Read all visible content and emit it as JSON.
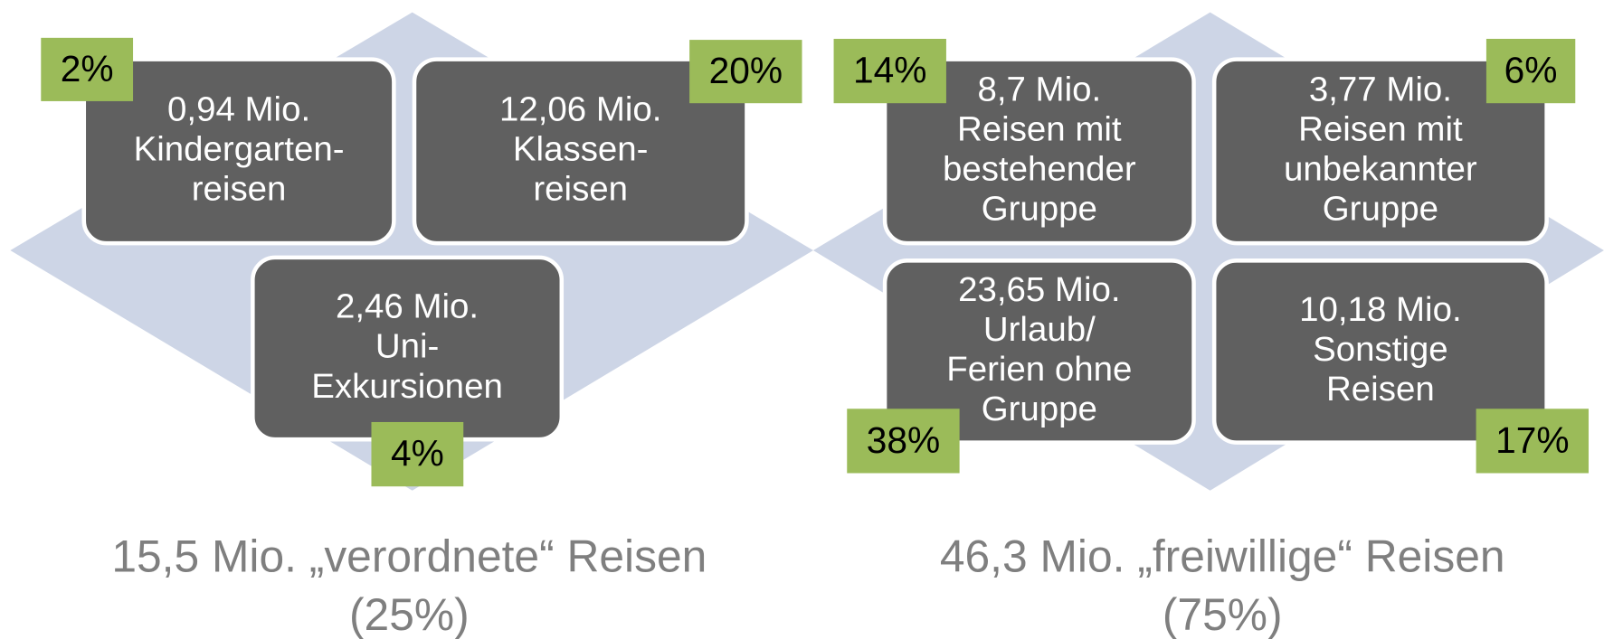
{
  "groups": [
    {
      "boxes": [
        {
          "lines": [
            "0,94 Mio.",
            "Kindergarten-",
            "reisen"
          ]
        },
        {
          "lines": [
            "12,06 Mio.",
            "Klassen-",
            "reisen"
          ]
        },
        {
          "lines": [
            "2,46 Mio.",
            "Uni-",
            "Exkursionen"
          ]
        }
      ],
      "badges": [
        "2%",
        "20%",
        "4%"
      ],
      "caption": [
        "15,5 Mio. „verordnete“ Reisen",
        "(25%)"
      ]
    },
    {
      "boxes": [
        {
          "lines": [
            "8,7 Mio.",
            "Reisen mit",
            "bestehender",
            "Gruppe"
          ]
        },
        {
          "lines": [
            "3,77 Mio.",
            "Reisen mit",
            "unbekannter",
            "Gruppe"
          ]
        },
        {
          "lines": [
            "23,65 Mio.",
            "Urlaub/",
            "Ferien ohne",
            "Gruppe"
          ]
        },
        {
          "lines": [
            "10,18 Mio.",
            "Sonstige",
            "Reisen"
          ]
        }
      ],
      "badges": [
        "14%",
        "6%",
        "38%",
        "17%"
      ],
      "caption": [
        "46,3 Mio. „freiwillige“ Reisen",
        "(75%)"
      ]
    }
  ]
}
